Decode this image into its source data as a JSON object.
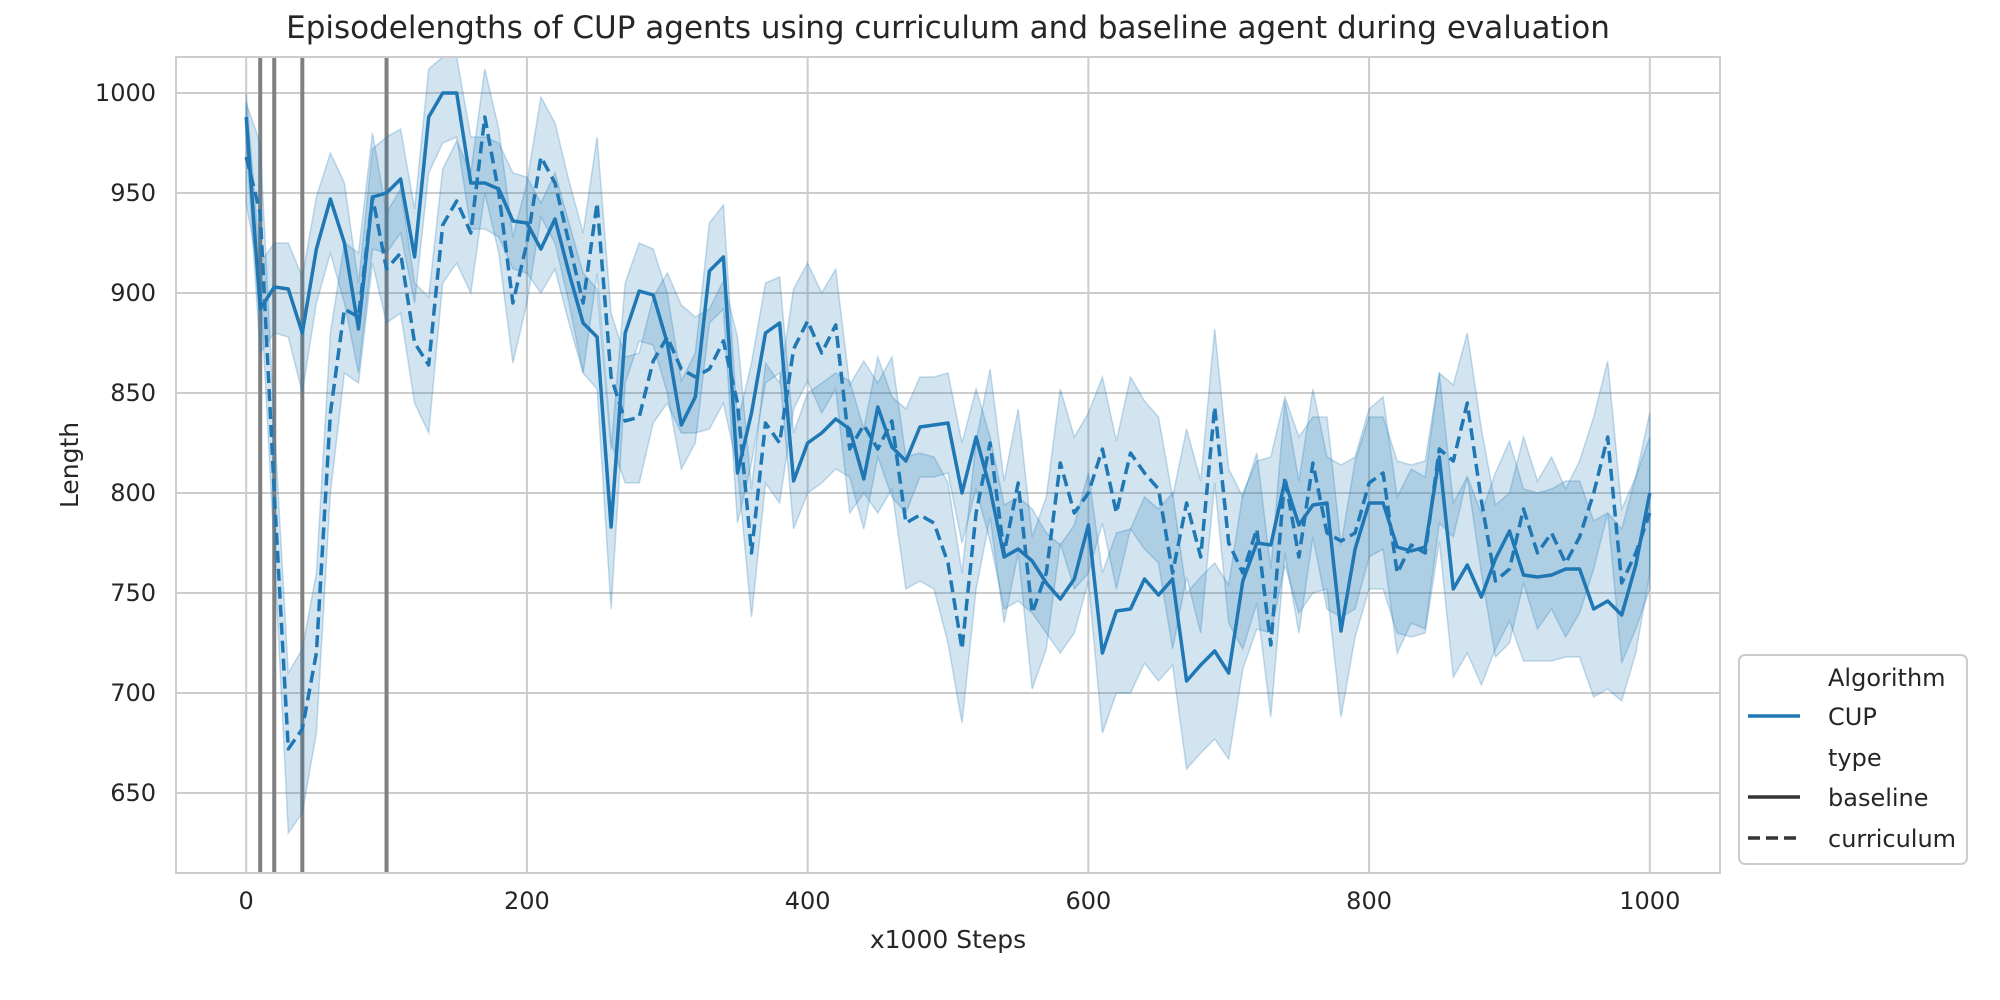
{
  "chart_data": {
    "type": "line",
    "title": "Episodelengths of CUP agents using curriculum and baseline agent during evaluation",
    "xlabel": "x1000 Steps",
    "ylabel": "Length",
    "xlim": [
      -50,
      1050
    ],
    "ylim": [
      610,
      1018
    ],
    "xticks": [
      0,
      200,
      400,
      600,
      800,
      1000
    ],
    "yticks": [
      650,
      700,
      750,
      800,
      850,
      900,
      950,
      1000
    ],
    "grid": true,
    "vlines": [
      10,
      20,
      40,
      100
    ],
    "colors": {
      "series": "#1f77b4",
      "band": "#1f77b4",
      "vline": "#808080",
      "grid": "#cccccc"
    },
    "x": [
      0,
      10,
      20,
      30,
      40,
      50,
      60,
      70,
      80,
      90,
      100,
      110,
      120,
      130,
      140,
      150,
      160,
      170,
      180,
      190,
      200,
      210,
      220,
      230,
      240,
      250,
      260,
      270,
      280,
      290,
      300,
      310,
      320,
      330,
      340,
      350,
      360,
      370,
      380,
      390,
      400,
      410,
      420,
      430,
      440,
      450,
      460,
      470,
      480,
      490,
      500,
      510,
      520,
      530,
      540,
      550,
      560,
      570,
      580,
      590,
      600,
      610,
      620,
      630,
      640,
      650,
      660,
      670,
      680,
      690,
      700,
      710,
      720,
      730,
      740,
      750,
      760,
      770,
      780,
      790,
      800,
      810,
      820,
      830,
      840,
      850,
      860,
      870,
      880,
      890,
      900,
      910,
      920,
      930,
      940,
      950,
      960,
      970,
      980,
      990,
      1000
    ],
    "series": [
      {
        "name": "baseline",
        "style": "solid",
        "values": [
          988,
          892,
          903,
          902,
          880,
          922,
          947,
          925,
          882,
          948,
          950,
          957,
          918,
          988,
          1000,
          1000,
          955,
          955,
          952,
          936,
          935,
          922,
          937,
          910,
          885,
          878,
          783,
          880,
          901,
          899,
          875,
          834,
          848,
          911,
          918,
          810,
          840,
          880,
          885,
          806,
          825,
          830,
          837,
          832,
          807,
          843,
          823,
          816,
          833,
          834,
          835,
          800,
          828,
          802,
          768,
          772,
          766,
          755,
          747,
          757,
          784,
          720,
          741,
          742,
          757,
          749,
          757,
          706,
          714,
          721,
          710,
          756,
          775,
          774,
          806,
          784,
          794,
          795,
          731,
          772,
          795,
          795,
          773,
          771,
          773,
          818,
          752,
          764,
          748,
          767,
          781,
          759,
          758,
          759,
          762,
          762,
          742,
          746,
          739,
          764,
          800
        ],
        "lower": [
          975,
          870,
          880,
          878,
          850,
          895,
          920,
          895,
          860,
          922,
          920,
          930,
          895,
          960,
          975,
          978,
          932,
          932,
          928,
          912,
          910,
          900,
          912,
          885,
          860,
          852,
          742,
          855,
          876,
          874,
          850,
          812,
          825,
          885,
          892,
          785,
          815,
          855,
          860,
          782,
          800,
          805,
          812,
          808,
          782,
          818,
          798,
          790,
          808,
          808,
          810,
          775,
          802,
          776,
          742,
          746,
          740,
          730,
          720,
          730,
          756,
          680,
          700,
          700,
          715,
          706,
          714,
          662,
          670,
          677,
          667,
          712,
          732,
          730,
          764,
          740,
          750,
          752,
          688,
          728,
          752,
          752,
          730,
          728,
          730,
          776,
          708,
          720,
          704,
          722,
          736,
          716,
          716,
          716,
          718,
          718,
          698,
          702,
          696,
          720,
          760
        ],
        "upper": [
          1000,
          915,
          925,
          925,
          908,
          948,
          970,
          955,
          905,
          972,
          978,
          982,
          942,
          1012,
          1018,
          1018,
          978,
          978,
          975,
          960,
          958,
          945,
          960,
          935,
          910,
          902,
          822,
          905,
          925,
          922,
          900,
          856,
          870,
          935,
          944,
          835,
          865,
          905,
          908,
          830,
          850,
          855,
          860,
          856,
          832,
          868,
          848,
          842,
          858,
          858,
          860,
          825,
          852,
          828,
          794,
          798,
          792,
          780,
          774,
          784,
          810,
          760,
          780,
          782,
          798,
          792,
          800,
          750,
          758,
          765,
          754,
          800,
          816,
          818,
          848,
          828,
          838,
          838,
          774,
          816,
          838,
          838,
          816,
          814,
          816,
          860,
          795,
          808,
          790,
          810,
          826,
          802,
          800,
          802,
          806,
          806,
          786,
          790,
          782,
          808,
          840
        ]
      },
      {
        "name": "curriculum",
        "style": "dashed",
        "values": [
          968,
          940,
          800,
          672,
          682,
          720,
          840,
          892,
          888,
          948,
          912,
          920,
          875,
          864,
          934,
          946,
          930,
          988,
          950,
          895,
          925,
          968,
          955,
          925,
          895,
          945,
          858,
          836,
          838,
          866,
          878,
          862,
          858,
          862,
          876,
          845,
          770,
          835,
          825,
          872,
          886,
          870,
          884,
          822,
          834,
          822,
          836,
          785,
          789,
          785,
          765,
          722,
          790,
          825,
          770,
          805,
          740,
          760,
          815,
          790,
          800,
          822,
          790,
          820,
          810,
          802,
          760,
          795,
          768,
          843,
          775,
          760,
          782,
          724,
          808,
          768,
          815,
          780,
          776,
          780,
          805,
          810,
          760,
          774,
          770,
          822,
          816,
          845,
          796,
          756,
          762,
          792,
          770,
          780,
          765,
          778,
          800,
          828,
          755,
          770,
          790
        ],
        "lower": [
          945,
          905,
          770,
          630,
          640,
          680,
          800,
          860,
          855,
          915,
          885,
          890,
          845,
          830,
          905,
          915,
          900,
          950,
          920,
          865,
          895,
          938,
          925,
          895,
          860,
          910,
          825,
          805,
          805,
          835,
          845,
          830,
          830,
          832,
          845,
          812,
          738,
          805,
          795,
          842,
          856,
          840,
          852,
          790,
          800,
          790,
          802,
          752,
          756,
          752,
          725,
          685,
          752,
          788,
          735,
          770,
          702,
          722,
          775,
          752,
          760,
          785,
          752,
          782,
          772,
          765,
          722,
          758,
          730,
          805,
          735,
          722,
          745,
          688,
          770,
          730,
          778,
          742,
          738,
          742,
          768,
          772,
          720,
          735,
          732,
          785,
          778,
          808,
          760,
          718,
          725,
          755,
          732,
          742,
          728,
          740,
          762,
          790,
          715,
          732,
          752
        ],
        "upper": [
          995,
          975,
          835,
          710,
          722,
          760,
          880,
          925,
          920,
          980,
          940,
          952,
          905,
          898,
          962,
          976,
          960,
          1012,
          982,
          928,
          955,
          998,
          985,
          956,
          930,
          978,
          890,
          868,
          870,
          898,
          910,
          894,
          888,
          892,
          906,
          878,
          802,
          865,
          855,
          902,
          915,
          900,
          912,
          854,
          866,
          855,
          868,
          818,
          820,
          818,
          805,
          760,
          826,
          862,
          806,
          842,
          778,
          798,
          852,
          828,
          840,
          858,
          826,
          858,
          846,
          838,
          798,
          832,
          806,
          882,
          812,
          798,
          820,
          762,
          846,
          806,
          852,
          818,
          814,
          818,
          842,
          848,
          798,
          812,
          808,
          860,
          854,
          880,
          832,
          794,
          800,
          828,
          806,
          818,
          802,
          816,
          838,
          866,
          792,
          808,
          828
        ]
      }
    ],
    "legend": {
      "position": "lower-right, outside plot",
      "header1": "Algorithm",
      "item1": "CUP",
      "header2": "type",
      "item2": "baseline",
      "item3": "curriculum"
    }
  }
}
